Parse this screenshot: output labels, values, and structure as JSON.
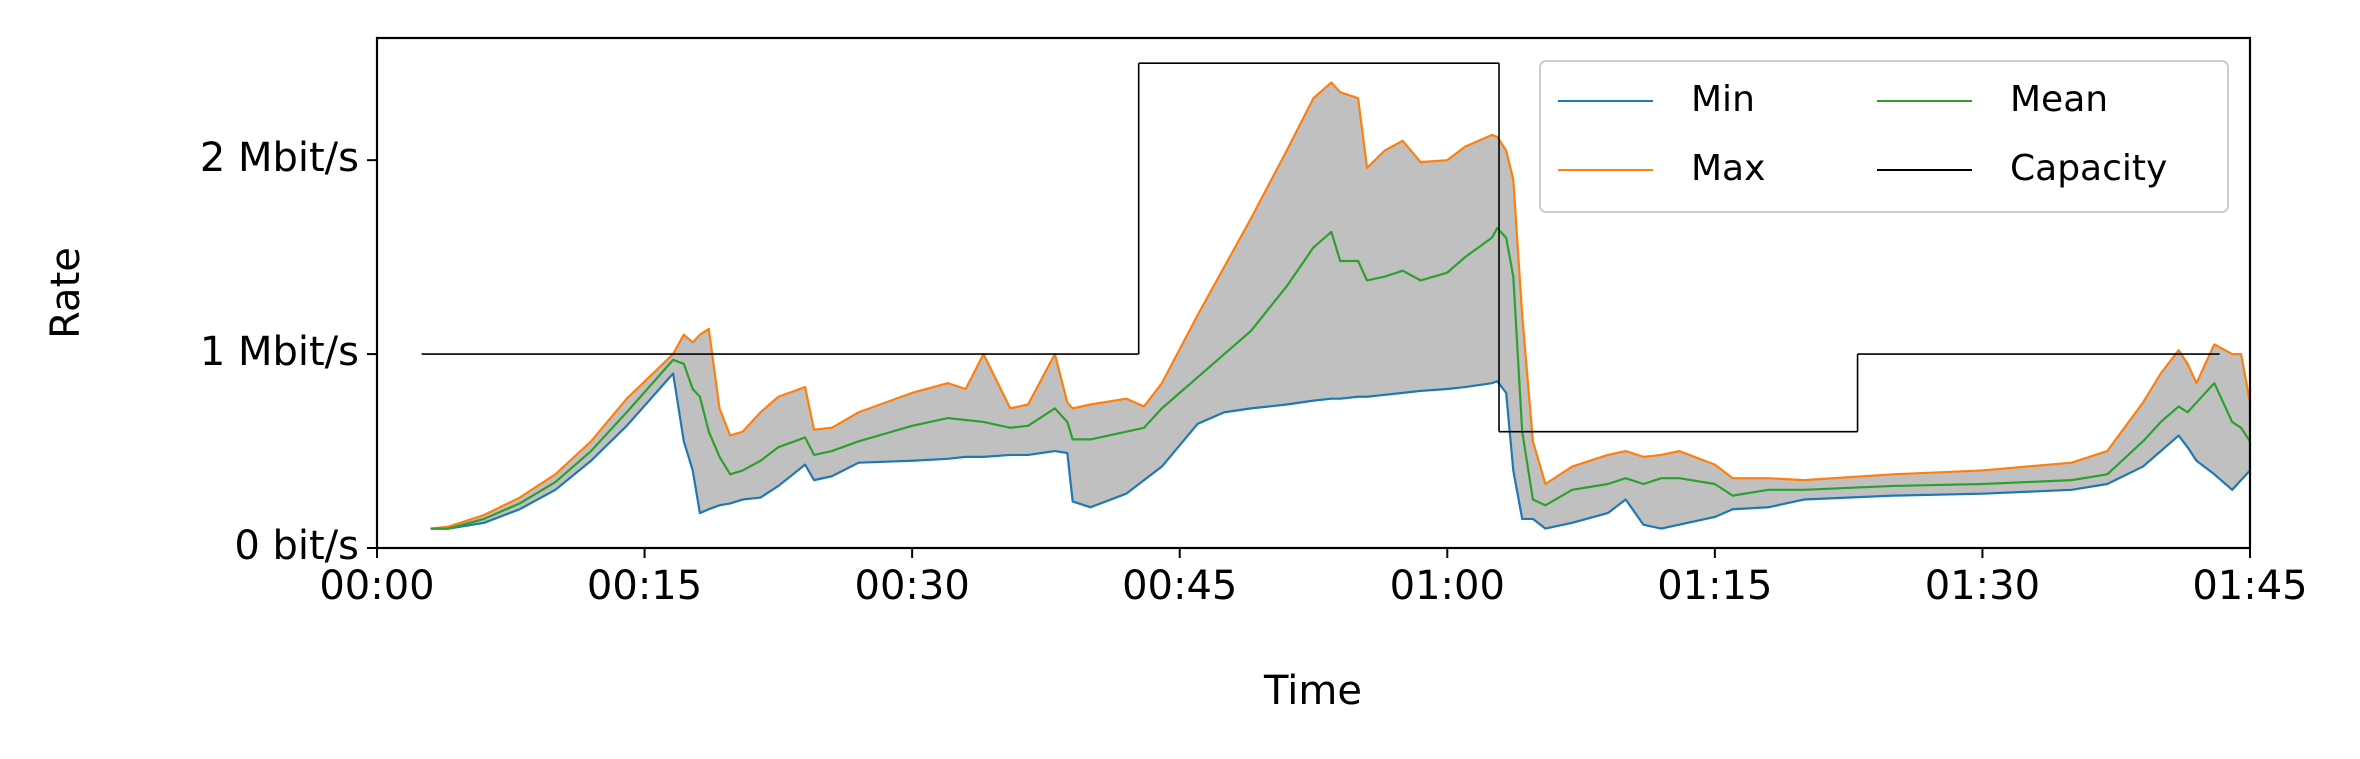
{
  "chart_data": {
    "type": "line",
    "x_label": "Time",
    "y_label": "Rate",
    "xlim": [
      0,
      105
    ],
    "xticks": [
      {
        "value": 0,
        "label": "00:00"
      },
      {
        "value": 15,
        "label": "00:15"
      },
      {
        "value": 30,
        "label": "00:30"
      },
      {
        "value": 45,
        "label": "00:45"
      },
      {
        "value": 60,
        "label": "01:00"
      },
      {
        "value": 75,
        "label": "01:15"
      },
      {
        "value": 90,
        "label": "01:30"
      },
      {
        "value": 105,
        "label": "01:45"
      }
    ],
    "ylim": [
      0,
      2.63
    ],
    "yticks": [
      {
        "value": 0,
        "label": "0 bit/s"
      },
      {
        "value": 1,
        "label": "1 Mbit/s"
      },
      {
        "value": 2,
        "label": "2 Mbit/s"
      }
    ],
    "legend": "upper right",
    "fill_color": "#c0c0c0",
    "x": [
      3,
      4,
      6,
      8,
      10,
      12,
      14,
      16.6,
      17.2,
      17.7,
      18.1,
      18.6,
      19.2,
      19.8,
      20.5,
      21.5,
      22.5,
      24,
      24.5,
      25.5,
      27,
      30,
      32,
      33,
      34,
      35.5,
      36.5,
      38,
      38.7,
      39,
      40,
      42,
      43,
      44,
      46,
      47.5,
      49,
      51,
      52.5,
      53.5,
      54,
      55,
      55.5,
      56.5,
      57.5,
      58.5,
      60,
      61,
      62.5,
      62.8,
      63.3,
      63.7,
      64.2,
      64.8,
      65.5,
      67,
      69,
      70,
      71,
      72,
      73,
      75,
      76,
      78,
      80,
      85,
      90,
      95,
      97,
      99,
      100,
      101,
      101.5,
      102,
      103,
      104,
      104.5,
      105
    ],
    "series": [
      {
        "name": "Min",
        "color": "#1f77b4",
        "values": [
          0.1,
          0.1,
          0.13,
          0.2,
          0.3,
          0.45,
          0.63,
          0.9,
          0.55,
          0.4,
          0.18,
          0.2,
          0.22,
          0.23,
          0.25,
          0.26,
          0.32,
          0.43,
          0.35,
          0.37,
          0.44,
          0.45,
          0.46,
          0.47,
          0.47,
          0.48,
          0.48,
          0.5,
          0.49,
          0.24,
          0.21,
          0.28,
          0.35,
          0.42,
          0.64,
          0.7,
          0.72,
          0.74,
          0.76,
          0.77,
          0.77,
          0.78,
          0.78,
          0.79,
          0.8,
          0.81,
          0.82,
          0.83,
          0.85,
          0.86,
          0.8,
          0.4,
          0.15,
          0.15,
          0.1,
          0.13,
          0.18,
          0.25,
          0.12,
          0.1,
          0.12,
          0.16,
          0.2,
          0.21,
          0.25,
          0.27,
          0.28,
          0.3,
          0.33,
          0.42,
          0.5,
          0.58,
          0.52,
          0.45,
          0.38,
          0.3,
          0.35,
          0.4
        ]
      },
      {
        "name": "Max",
        "color": "#ff7f0e",
        "values": [
          0.1,
          0.11,
          0.17,
          0.26,
          0.38,
          0.55,
          0.77,
          1.0,
          1.1,
          1.06,
          1.1,
          1.13,
          0.72,
          0.58,
          0.6,
          0.7,
          0.78,
          0.83,
          0.61,
          0.62,
          0.7,
          0.8,
          0.85,
          0.82,
          1.0,
          0.72,
          0.74,
          1.0,
          0.75,
          0.72,
          0.74,
          0.77,
          0.73,
          0.85,
          1.2,
          1.45,
          1.7,
          2.05,
          2.32,
          2.4,
          2.35,
          2.32,
          1.96,
          2.05,
          2.1,
          1.99,
          2.0,
          2.07,
          2.13,
          2.12,
          2.05,
          1.9,
          1.2,
          0.55,
          0.33,
          0.42,
          0.48,
          0.5,
          0.47,
          0.48,
          0.5,
          0.43,
          0.36,
          0.36,
          0.35,
          0.38,
          0.4,
          0.44,
          0.5,
          0.75,
          0.9,
          1.02,
          0.95,
          0.85,
          1.05,
          1.0,
          1.0,
          0.75
        ]
      },
      {
        "name": "Mean",
        "color": "#2ca02c",
        "values": [
          0.1,
          0.1,
          0.15,
          0.23,
          0.34,
          0.5,
          0.7,
          0.97,
          0.95,
          0.82,
          0.78,
          0.6,
          0.47,
          0.38,
          0.4,
          0.45,
          0.52,
          0.57,
          0.48,
          0.5,
          0.55,
          0.63,
          0.67,
          0.66,
          0.65,
          0.62,
          0.63,
          0.72,
          0.65,
          0.56,
          0.56,
          0.6,
          0.62,
          0.72,
          0.88,
          1.0,
          1.12,
          1.35,
          1.55,
          1.63,
          1.48,
          1.48,
          1.38,
          1.4,
          1.43,
          1.38,
          1.42,
          1.5,
          1.6,
          1.65,
          1.6,
          1.4,
          0.6,
          0.25,
          0.22,
          0.3,
          0.33,
          0.36,
          0.33,
          0.36,
          0.36,
          0.33,
          0.27,
          0.3,
          0.3,
          0.32,
          0.33,
          0.35,
          0.38,
          0.55,
          0.65,
          0.73,
          0.7,
          0.75,
          0.85,
          0.65,
          0.62,
          0.55
        ]
      },
      {
        "name": "Capacity",
        "color": "#000000",
        "drawstyle": "steps-post",
        "x": [
          2.5,
          42.7,
          62.9,
          83.0,
          103.3
        ],
        "values": [
          1,
          2.5,
          0.6,
          1,
          1
        ]
      }
    ]
  }
}
